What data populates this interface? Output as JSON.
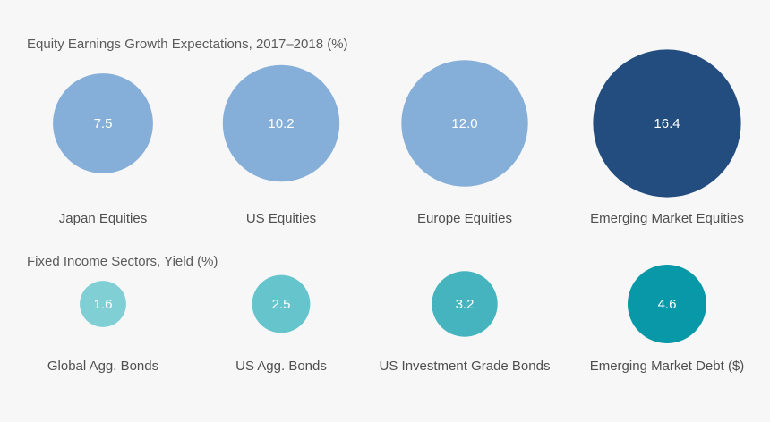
{
  "chart_data": [
    {
      "type": "bubble",
      "title": "Equity Earnings Growth Expectations, 2017–2018 (%)",
      "categories": [
        "Japan Equities",
        "US Equities",
        "Europe Equities",
        "Emerging Market Equities"
      ],
      "values": [
        7.5,
        10.2,
        12.0,
        16.4
      ],
      "value_labels": [
        "7.5",
        "10.2",
        "12.0",
        "16.4"
      ],
      "colors": [
        "#85aed8",
        "#85aed8",
        "#85aed8",
        "#234d7e"
      ]
    },
    {
      "type": "bubble",
      "title": "Fixed Income Sectors, Yield (%)",
      "categories": [
        "Global Agg. Bonds",
        "US Agg. Bonds",
        "US Investment Grade Bonds",
        "Emerging Market Debt ($)"
      ],
      "values": [
        1.6,
        2.5,
        3.2,
        4.6
      ],
      "value_labels": [
        "1.6",
        "2.5",
        "3.2",
        "4.6"
      ],
      "colors": [
        "#80cfd4",
        "#66c4cc",
        "#46b4be",
        "#0898a7"
      ]
    }
  ]
}
